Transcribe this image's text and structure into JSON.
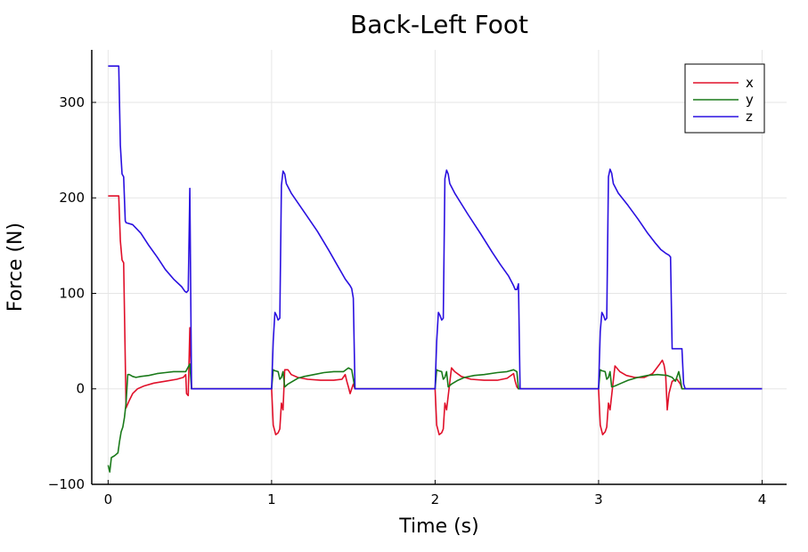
{
  "chart_data": {
    "type": "line",
    "title": "Back-Left Foot",
    "xlabel": "Time (s)",
    "ylabel": "Force (N)",
    "xlim": [
      -0.1,
      4.15
    ],
    "ylim": [
      -100,
      355
    ],
    "xticks": [
      0,
      1,
      2,
      3,
      4
    ],
    "xtick_labels": [
      "0",
      "1",
      "2",
      "3",
      "4"
    ],
    "yticks": [
      -100,
      0,
      100,
      200,
      300
    ],
    "ytick_labels": [
      "−100",
      "0",
      "100",
      "200",
      "300"
    ],
    "grid": true,
    "legend_position": "top-right",
    "series": [
      {
        "name": "x",
        "color": "#e0102a",
        "points": [
          [
            0,
            202
          ],
          [
            0.02,
            202
          ],
          [
            0.05,
            202
          ],
          [
            0.065,
            202
          ],
          [
            0.075,
            155
          ],
          [
            0.085,
            135
          ],
          [
            0.095,
            132
          ],
          [
            0.11,
            -20
          ],
          [
            0.13,
            -12
          ],
          [
            0.15,
            -5
          ],
          [
            0.18,
            0
          ],
          [
            0.22,
            3
          ],
          [
            0.28,
            6
          ],
          [
            0.35,
            8
          ],
          [
            0.42,
            10
          ],
          [
            0.46,
            12
          ],
          [
            0.475,
            15
          ],
          [
            0.48,
            -5
          ],
          [
            0.49,
            -7
          ],
          [
            0.5,
            64
          ],
          [
            0.51,
            0
          ],
          [
            0.52,
            0
          ],
          [
            0.6,
            0
          ],
          [
            0.8,
            0
          ],
          [
            0.98,
            0
          ],
          [
            1.0,
            0
          ],
          [
            1.01,
            -38
          ],
          [
            1.025,
            -48
          ],
          [
            1.04,
            -46
          ],
          [
            1.05,
            -42
          ],
          [
            1.06,
            -15
          ],
          [
            1.07,
            -22
          ],
          [
            1.08,
            20
          ],
          [
            1.1,
            20
          ],
          [
            1.12,
            15
          ],
          [
            1.16,
            12
          ],
          [
            1.22,
            10
          ],
          [
            1.3,
            9
          ],
          [
            1.38,
            9
          ],
          [
            1.43,
            10
          ],
          [
            1.45,
            15
          ],
          [
            1.46,
            8
          ],
          [
            1.47,
            2
          ],
          [
            1.48,
            -5
          ],
          [
            1.5,
            5
          ],
          [
            1.51,
            0
          ],
          [
            1.52,
            0
          ],
          [
            1.7,
            0
          ],
          [
            1.98,
            0
          ],
          [
            2.0,
            0
          ],
          [
            2.01,
            -38
          ],
          [
            2.025,
            -48
          ],
          [
            2.04,
            -46
          ],
          [
            2.05,
            -42
          ],
          [
            2.06,
            -15
          ],
          [
            2.07,
            -22
          ],
          [
            2.1,
            22
          ],
          [
            2.12,
            18
          ],
          [
            2.16,
            13
          ],
          [
            2.22,
            10
          ],
          [
            2.3,
            9
          ],
          [
            2.38,
            9
          ],
          [
            2.44,
            11
          ],
          [
            2.48,
            16
          ],
          [
            2.49,
            8
          ],
          [
            2.5,
            2
          ],
          [
            2.51,
            0
          ],
          [
            2.6,
            0
          ],
          [
            2.8,
            0
          ],
          [
            2.98,
            0
          ],
          [
            3.0,
            0
          ],
          [
            3.01,
            -38
          ],
          [
            3.025,
            -48
          ],
          [
            3.04,
            -45
          ],
          [
            3.05,
            -40
          ],
          [
            3.06,
            -15
          ],
          [
            3.07,
            -22
          ],
          [
            3.1,
            24
          ],
          [
            3.13,
            18
          ],
          [
            3.17,
            14
          ],
          [
            3.22,
            12
          ],
          [
            3.28,
            12
          ],
          [
            3.33,
            16
          ],
          [
            3.37,
            25
          ],
          [
            3.39,
            30
          ],
          [
            3.4,
            25
          ],
          [
            3.41,
            15
          ],
          [
            3.42,
            -22
          ],
          [
            3.43,
            -5
          ],
          [
            3.45,
            8
          ],
          [
            3.48,
            10
          ],
          [
            3.5,
            5
          ],
          [
            3.51,
            0
          ],
          [
            3.6,
            0
          ],
          [
            3.8,
            0
          ],
          [
            4.0,
            0
          ]
        ]
      },
      {
        "name": "y",
        "color": "#1a7a1a",
        "points": [
          [
            0,
            -80
          ],
          [
            0.01,
            -87
          ],
          [
            0.02,
            -72
          ],
          [
            0.04,
            -70
          ],
          [
            0.06,
            -67
          ],
          [
            0.07,
            -55
          ],
          [
            0.08,
            -45
          ],
          [
            0.09,
            -40
          ],
          [
            0.1,
            -30
          ],
          [
            0.11,
            -15
          ],
          [
            0.12,
            15
          ],
          [
            0.13,
            15
          ],
          [
            0.15,
            13
          ],
          [
            0.17,
            12
          ],
          [
            0.2,
            13
          ],
          [
            0.25,
            14
          ],
          [
            0.3,
            16
          ],
          [
            0.35,
            17
          ],
          [
            0.4,
            18
          ],
          [
            0.45,
            18
          ],
          [
            0.475,
            18
          ],
          [
            0.49,
            23
          ],
          [
            0.5,
            26
          ],
          [
            0.51,
            0
          ],
          [
            0.6,
            0
          ],
          [
            0.8,
            0
          ],
          [
            0.98,
            0
          ],
          [
            1.0,
            0
          ],
          [
            1.01,
            20
          ],
          [
            1.02,
            19
          ],
          [
            1.04,
            18
          ],
          [
            1.05,
            10
          ],
          [
            1.06,
            12
          ],
          [
            1.07,
            18
          ],
          [
            1.08,
            2
          ],
          [
            1.1,
            5
          ],
          [
            1.13,
            8
          ],
          [
            1.16,
            11
          ],
          [
            1.2,
            13
          ],
          [
            1.26,
            15
          ],
          [
            1.32,
            17
          ],
          [
            1.38,
            18
          ],
          [
            1.44,
            18
          ],
          [
            1.47,
            22
          ],
          [
            1.49,
            20
          ],
          [
            1.51,
            0
          ],
          [
            1.6,
            0
          ],
          [
            1.8,
            0
          ],
          [
            1.98,
            0
          ],
          [
            2.0,
            0
          ],
          [
            2.01,
            20
          ],
          [
            2.02,
            19
          ],
          [
            2.04,
            18
          ],
          [
            2.05,
            10
          ],
          [
            2.06,
            12
          ],
          [
            2.07,
            18
          ],
          [
            2.08,
            2
          ],
          [
            2.1,
            5
          ],
          [
            2.14,
            9
          ],
          [
            2.18,
            12
          ],
          [
            2.24,
            14
          ],
          [
            2.3,
            15
          ],
          [
            2.38,
            17
          ],
          [
            2.44,
            18
          ],
          [
            2.48,
            20
          ],
          [
            2.5,
            18
          ],
          [
            2.51,
            0
          ],
          [
            2.6,
            0
          ],
          [
            2.8,
            0
          ],
          [
            2.98,
            0
          ],
          [
            3.0,
            0
          ],
          [
            3.01,
            20
          ],
          [
            3.02,
            19
          ],
          [
            3.04,
            18
          ],
          [
            3.05,
            10
          ],
          [
            3.06,
            12
          ],
          [
            3.07,
            18
          ],
          [
            3.08,
            2
          ],
          [
            3.1,
            3
          ],
          [
            3.14,
            6
          ],
          [
            3.18,
            9
          ],
          [
            3.24,
            12
          ],
          [
            3.3,
            14
          ],
          [
            3.36,
            15
          ],
          [
            3.42,
            14
          ],
          [
            3.45,
            12
          ],
          [
            3.47,
            8
          ],
          [
            3.49,
            18
          ],
          [
            3.5,
            10
          ],
          [
            3.51,
            0
          ],
          [
            3.6,
            0
          ],
          [
            3.8,
            0
          ],
          [
            4.0,
            0
          ]
        ]
      },
      {
        "name": "z",
        "color": "#2a10e0",
        "points": [
          [
            0,
            338
          ],
          [
            0.02,
            338
          ],
          [
            0.05,
            338
          ],
          [
            0.065,
            338
          ],
          [
            0.075,
            255
          ],
          [
            0.085,
            225
          ],
          [
            0.095,
            222
          ],
          [
            0.105,
            176
          ],
          [
            0.11,
            174
          ],
          [
            0.15,
            172
          ],
          [
            0.2,
            163
          ],
          [
            0.25,
            150
          ],
          [
            0.3,
            138
          ],
          [
            0.35,
            125
          ],
          [
            0.4,
            115
          ],
          [
            0.45,
            107
          ],
          [
            0.47,
            102
          ],
          [
            0.48,
            101
          ],
          [
            0.49,
            103
          ],
          [
            0.5,
            210
          ],
          [
            0.51,
            0
          ],
          [
            0.6,
            0
          ],
          [
            0.8,
            0
          ],
          [
            0.98,
            0
          ],
          [
            1.0,
            0
          ],
          [
            1.01,
            50
          ],
          [
            1.02,
            80
          ],
          [
            1.03,
            77
          ],
          [
            1.04,
            72
          ],
          [
            1.05,
            74
          ],
          [
            1.06,
            213
          ],
          [
            1.07,
            228
          ],
          [
            1.08,
            225
          ],
          [
            1.09,
            215
          ],
          [
            1.12,
            205
          ],
          [
            1.2,
            185
          ],
          [
            1.28,
            165
          ],
          [
            1.35,
            145
          ],
          [
            1.4,
            130
          ],
          [
            1.45,
            115
          ],
          [
            1.48,
            108
          ],
          [
            1.49,
            105
          ],
          [
            1.5,
            95
          ],
          [
            1.51,
            0
          ],
          [
            1.6,
            0
          ],
          [
            1.8,
            0
          ],
          [
            1.98,
            0
          ],
          [
            2.0,
            0
          ],
          [
            2.01,
            50
          ],
          [
            2.02,
            80
          ],
          [
            2.03,
            77
          ],
          [
            2.04,
            72
          ],
          [
            2.05,
            74
          ],
          [
            2.06,
            220
          ],
          [
            2.07,
            229
          ],
          [
            2.08,
            225
          ],
          [
            2.09,
            215
          ],
          [
            2.12,
            205
          ],
          [
            2.2,
            183
          ],
          [
            2.28,
            162
          ],
          [
            2.35,
            143
          ],
          [
            2.4,
            130
          ],
          [
            2.45,
            118
          ],
          [
            2.48,
            108
          ],
          [
            2.49,
            104
          ],
          [
            2.5,
            104
          ],
          [
            2.51,
            110
          ],
          [
            2.52,
            0
          ],
          [
            2.6,
            0
          ],
          [
            2.8,
            0
          ],
          [
            2.98,
            0
          ],
          [
            3.0,
            0
          ],
          [
            3.01,
            60
          ],
          [
            3.02,
            80
          ],
          [
            3.03,
            77
          ],
          [
            3.04,
            72
          ],
          [
            3.05,
            74
          ],
          [
            3.06,
            222
          ],
          [
            3.07,
            230
          ],
          [
            3.08,
            226
          ],
          [
            3.09,
            215
          ],
          [
            3.12,
            205
          ],
          [
            3.18,
            192
          ],
          [
            3.24,
            178
          ],
          [
            3.3,
            163
          ],
          [
            3.35,
            152
          ],
          [
            3.38,
            146
          ],
          [
            3.41,
            142
          ],
          [
            3.43,
            140
          ],
          [
            3.44,
            138
          ],
          [
            3.45,
            42
          ],
          [
            3.5,
            42
          ],
          [
            3.51,
            42
          ],
          [
            3.52,
            5
          ],
          [
            3.53,
            0
          ],
          [
            3.6,
            0
          ],
          [
            3.8,
            0
          ],
          [
            4.0,
            0
          ]
        ]
      }
    ]
  }
}
